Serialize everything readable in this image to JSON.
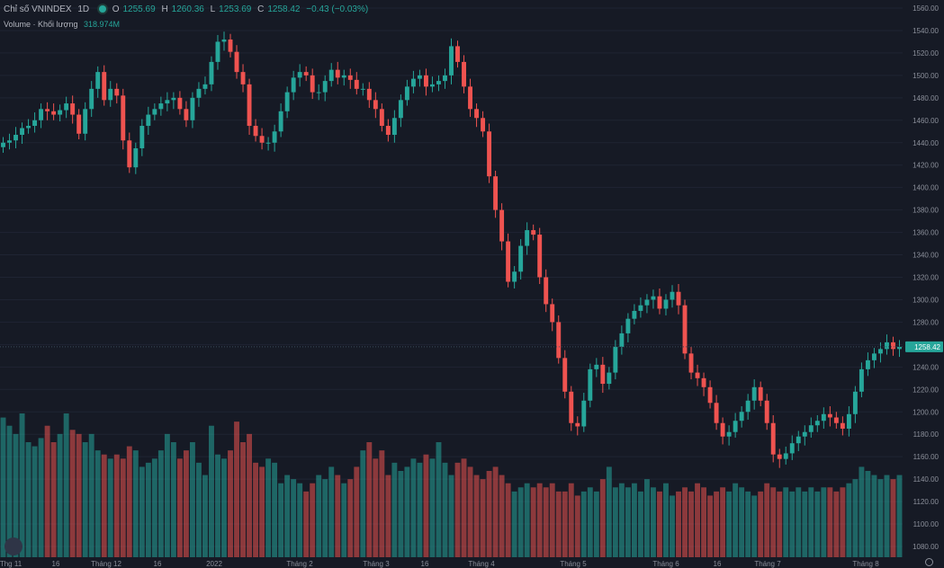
{
  "legend": {
    "symbol": "Chỉ số VNINDEX",
    "interval": "1D",
    "open_label": "O",
    "open": "1255.69",
    "high_label": "H",
    "high": "1260.36",
    "low_label": "L",
    "low": "1253.69",
    "close_label": "C",
    "close": "1258.42",
    "change": "−0.43 (−0.03%)",
    "volume_label": "Volume · Khối lượng",
    "volume_value": "318.974M"
  },
  "colors": {
    "up": "#26a69a",
    "down": "#ef5350",
    "background": "#161a25",
    "grid": "#1f2433",
    "text": "#b2b5be"
  },
  "chart_data": {
    "type": "candlestick",
    "y_axis": {
      "min": 1080,
      "max": 1560,
      "ticks": [
        1080,
        1100,
        1120,
        1140,
        1160,
        1180,
        1200,
        1220,
        1240,
        1260,
        1280,
        1300,
        1320,
        1340,
        1360,
        1380,
        1400,
        1420,
        1440,
        1460,
        1480,
        1500,
        1520,
        1540,
        1560
      ],
      "position": "right"
    },
    "last_price_label": "1258.42",
    "x_tick_labels": [
      "Thg 11",
      "16",
      "Tháng 12",
      "16",
      "2022",
      "Tháng 2",
      "Tháng 3",
      "16",
      "Tháng 4",
      "Tháng 5",
      "Tháng 6",
      "16",
      "Tháng 7",
      "Tháng 8"
    ],
    "price": [
      1440,
      1442,
      1447,
      1453,
      1455,
      1460,
      1470,
      1468,
      1465,
      1469,
      1475,
      1465,
      1448,
      1470,
      1488,
      1503,
      1478,
      1488,
      1482,
      1442,
      1418,
      1435,
      1455,
      1465,
      1470,
      1475,
      1478,
      1480,
      1470,
      1460,
      1480,
      1488,
      1492,
      1512,
      1530,
      1532,
      1521,
      1503,
      1492,
      1455,
      1446,
      1440,
      1440,
      1450,
      1468,
      1485,
      1498,
      1503,
      1500,
      1485,
      1485,
      1495,
      1505,
      1498,
      1500,
      1496,
      1488,
      1488,
      1478,
      1470,
      1455,
      1447,
      1462,
      1478,
      1490,
      1497,
      1500,
      1490,
      1492,
      1495,
      1500,
      1526,
      1512,
      1490,
      1470,
      1462,
      1450,
      1410,
      1380,
      1352,
      1316,
      1325,
      1348,
      1362,
      1358,
      1320,
      1296,
      1280,
      1248,
      1218,
      1190,
      1187,
      1210,
      1238,
      1242,
      1225,
      1235,
      1258,
      1270,
      1283,
      1290,
      1295,
      1300,
      1303,
      1292,
      1300,
      1307,
      1295,
      1252,
      1235,
      1230,
      1222,
      1208,
      1190,
      1178,
      1182,
      1192,
      1200,
      1210,
      1222,
      1210,
      1190,
      1162,
      1158,
      1163,
      1172,
      1178,
      1182,
      1188,
      1192,
      1198,
      1195,
      1190,
      1185,
      1198,
      1218,
      1238,
      1246,
      1252,
      1256,
      1262,
      1256,
      1258
    ],
    "volume_series": [
      170,
      160,
      150,
      175,
      140,
      135,
      145,
      160,
      140,
      150,
      175,
      155,
      150,
      140,
      150,
      130,
      125,
      120,
      125,
      120,
      135,
      130,
      110,
      115,
      120,
      130,
      150,
      140,
      120,
      130,
      140,
      115,
      100,
      160,
      125,
      120,
      130,
      165,
      140,
      150,
      115,
      110,
      120,
      115,
      90,
      100,
      95,
      90,
      80,
      90,
      100,
      95,
      110,
      100,
      90,
      95,
      110,
      130,
      140,
      120,
      130,
      100,
      115,
      105,
      110,
      120,
      115,
      125,
      120,
      140,
      115,
      100,
      115,
      120,
      110,
      100,
      95,
      105,
      110,
      100,
      90,
      80,
      85,
      90,
      85,
      90,
      85,
      90,
      80,
      80,
      90,
      75,
      80,
      85,
      80,
      95,
      110,
      85,
      90,
      85,
      90,
      80,
      95,
      85,
      80,
      90,
      75,
      80,
      85,
      80,
      90,
      85,
      75,
      80,
      85,
      80,
      90,
      85,
      80,
      75,
      80,
      90,
      85,
      80,
      85,
      80,
      85,
      80,
      85,
      80,
      85,
      85,
      80,
      85,
      90,
      95,
      110,
      105,
      100,
      95,
      100,
      95,
      100
    ]
  }
}
